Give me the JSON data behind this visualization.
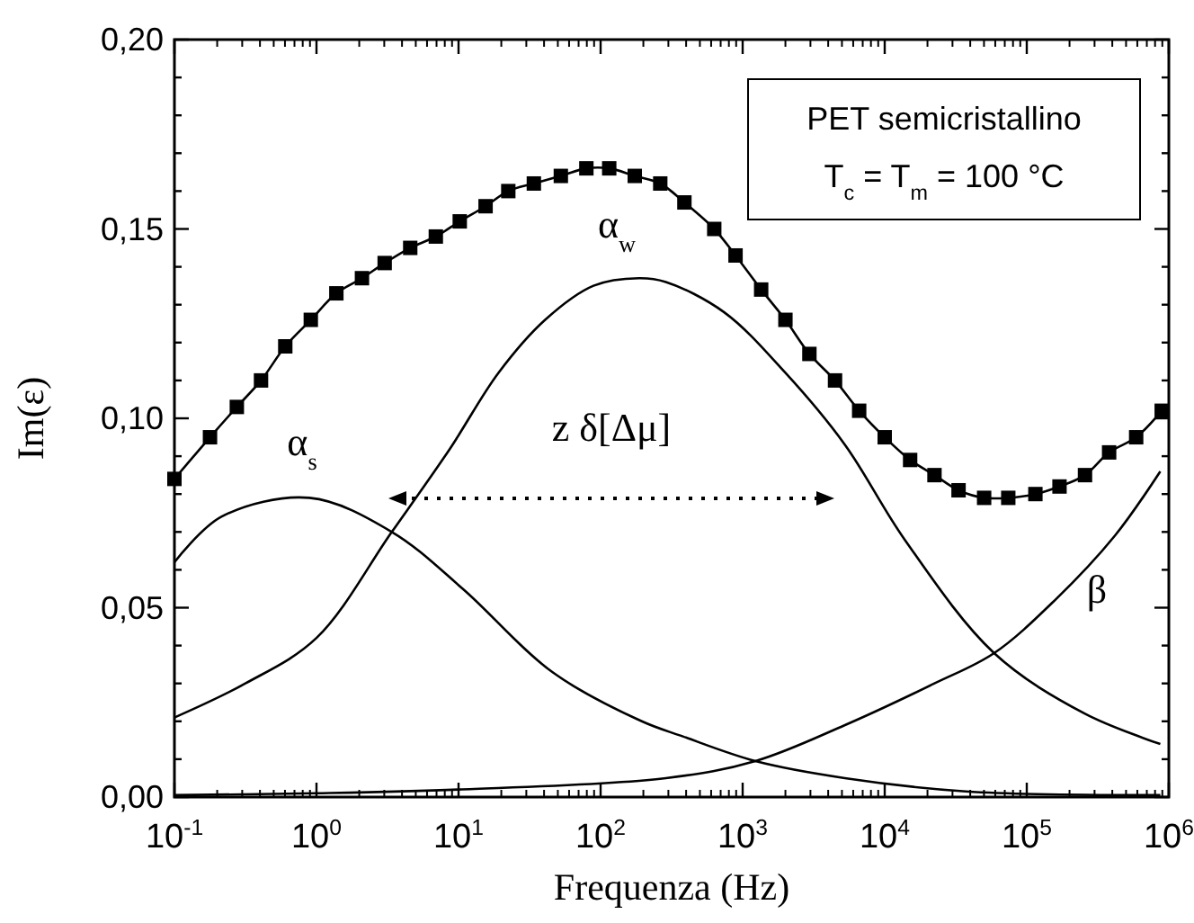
{
  "chart_data": {
    "type": "line",
    "xlabel": "Frequenza (Hz)",
    "ylabel": "Im(ε)",
    "log": "x",
    "grid": false,
    "xlim": [
      0.1,
      1000000
    ],
    "ylim": [
      0,
      0.2
    ],
    "xticks": [
      {
        "value": 0.1,
        "label": "10$^{-1}$"
      },
      {
        "value": 1,
        "label": "10$^{0}$"
      },
      {
        "value": 10,
        "label": "10$^{1}$"
      },
      {
        "value": 100,
        "label": "10$^{2}$"
      },
      {
        "value": 1000,
        "label": "10$^{3}$"
      },
      {
        "value": 10000,
        "label": "10$^{4}$"
      },
      {
        "value": 100000,
        "label": "10$^{5}$"
      },
      {
        "value": 1000000,
        "label": "10$^{6}$"
      }
    ],
    "yticks": [
      {
        "value": 0,
        "label": "0,00"
      },
      {
        "value": 0.01,
        "label": null
      },
      {
        "value": 0.02,
        "label": null
      },
      {
        "value": 0.03,
        "label": null
      },
      {
        "value": 0.04,
        "label": null
      },
      {
        "value": 0.05,
        "label": "0,05"
      },
      {
        "value": 0.06,
        "label": null
      },
      {
        "value": 0.07,
        "label": null
      },
      {
        "value": 0.08,
        "label": null
      },
      {
        "value": 0.09,
        "label": null
      },
      {
        "value": 0.1,
        "label": "0,10"
      },
      {
        "value": 0.11,
        "label": null
      },
      {
        "value": 0.12,
        "label": null
      },
      {
        "value": 0.13,
        "label": null
      },
      {
        "value": 0.14,
        "label": null
      },
      {
        "value": 0.15,
        "label": "0,15"
      },
      {
        "value": 0.16,
        "label": null
      },
      {
        "value": 0.17,
        "label": null
      },
      {
        "value": 0.18,
        "label": null
      },
      {
        "value": 0.19,
        "label": null
      },
      {
        "value": 0.2,
        "label": "0,20"
      }
    ],
    "series": [
      {
        "color": "#000000",
        "marker": "square",
        "x": [
          0.1,
          0.178,
          0.275,
          0.407,
          0.603,
          0.912,
          1.38,
          2.09,
          3.02,
          4.57,
          6.92,
          10.2,
          15.5,
          22.4,
          33.9,
          52.5,
          79.4,
          115,
          174,
          263,
          389,
          631,
          891,
          1350,
          2000,
          2950,
          4470,
          6610,
          10000,
          15100,
          22400,
          33100,
          50100,
          74100,
          115000,
          170000,
          257000,
          380000,
          589000,
          891000
        ],
        "values": [
          0.084,
          0.095,
          0.103,
          0.11,
          0.119,
          0.126,
          0.133,
          0.137,
          0.141,
          0.145,
          0.148,
          0.152,
          0.156,
          0.16,
          0.162,
          0.164,
          0.166,
          0.166,
          0.164,
          0.162,
          0.157,
          0.15,
          0.143,
          0.134,
          0.126,
          0.117,
          0.11,
          0.102,
          0.095,
          0.089,
          0.085,
          0.081,
          0.079,
          0.079,
          0.08,
          0.082,
          0.085,
          0.091,
          0.095,
          0.102
        ]
      },
      {
        "color": "#000000",
        "marker": "none",
        "x": [
          0.1,
          0.214,
          0.891,
          3.39,
          10.7,
          45.7,
          195,
          380,
          1230,
          5250,
          37200,
          871000
        ],
        "values": [
          0.062,
          0.074,
          0.079,
          0.07,
          0.055,
          0.033,
          0.02,
          0.016,
          0.0095,
          0.005,
          0.0015,
          0.0005
        ]
      },
      {
        "color": "#000000",
        "marker": "none",
        "x": [
          0.1,
          0.316,
          1,
          3.39,
          8.71,
          19.1,
          40.7,
          89.1,
          186,
          288,
          741,
          2000,
          5250,
          13800,
          58900,
          257000,
          871000
        ],
        "values": [
          0.021,
          0.03,
          0.042,
          0.07,
          0.092,
          0.112,
          0.126,
          0.135,
          0.137,
          0.136,
          0.128,
          0.112,
          0.093,
          0.068,
          0.038,
          0.022,
          0.014
        ]
      },
      {
        "color": "#000000",
        "marker": "none",
        "x": [
          0.1,
          1,
          10,
          288,
          1230,
          5250,
          22400,
          58900,
          158000,
          417000,
          871000
        ],
        "values": [
          0.0005,
          0.001,
          0.002,
          0.005,
          0.0095,
          0.019,
          0.03,
          0.038,
          0.052,
          0.069,
          0.086
        ]
      }
    ],
    "annotations": [
      "α$_{s}$",
      "α$_{w}$",
      "β",
      "z δ[Δμ]",
      "PET semicristallino",
      "T$_{c}$ = T$_{m}$ = 100 °C"
    ]
  }
}
